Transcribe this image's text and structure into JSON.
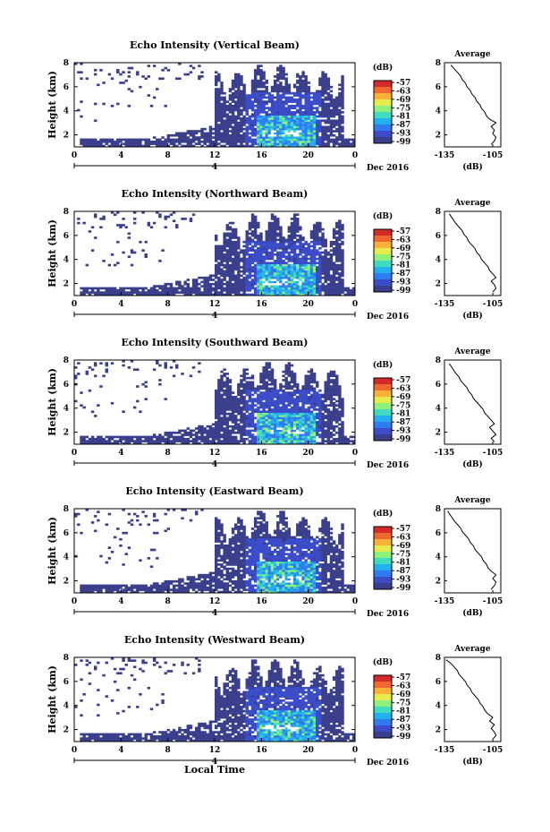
{
  "figure": {
    "xlabel": "Local Time",
    "date_label": "Dec 2016",
    "sub_tick_label": "4",
    "cb_unit": "(dB)",
    "avg_title": "Average",
    "avg_xlabel": "(dB)"
  },
  "colors": {
    "scale": [
      "#3a3f8c",
      "#3b4cc8",
      "#2f7cf0",
      "#22b1ee",
      "#3fdcc0",
      "#8ef27a",
      "#e6ec4a",
      "#f9b13a",
      "#f0672f",
      "#d42a2a"
    ]
  },
  "chart_data": [
    {
      "type": "heatmap",
      "title": "Echo Intensity (Vertical Beam)",
      "ylabel": "Height (km)",
      "xlabel": "",
      "x_ticks": [
        "0",
        "4",
        "8",
        "12",
        "16",
        "20",
        "0"
      ],
      "y_ticks": [
        "2",
        "4",
        "6",
        "8"
      ],
      "xlim": [
        0,
        24
      ],
      "ylim": [
        1,
        8
      ],
      "colorbar": {
        "label": "(dB)",
        "ticks": [
          "-57",
          "-63",
          "-69",
          "-75",
          "-81",
          "-87",
          "-93",
          "-99"
        ]
      },
      "profile": {
        "title": "Average",
        "xlabel": "(dB)",
        "x_ticks": [
          "-135",
          "-105"
        ],
        "y_ticks": [
          "2",
          "4",
          "6",
          "8"
        ],
        "xlim": [
          -135,
          -100
        ],
        "ylim": [
          1,
          8
        ],
        "points": [
          [
            -106,
            1.2
          ],
          [
            -104,
            1.5
          ],
          [
            -103,
            1.8
          ],
          [
            -105,
            2.1
          ],
          [
            -104,
            2.4
          ],
          [
            -106,
            2.7
          ],
          [
            -103,
            3.0
          ],
          [
            -107,
            3.3
          ],
          [
            -109,
            3.6
          ],
          [
            -110,
            3.9
          ],
          [
            -112,
            4.2
          ],
          [
            -113,
            4.5
          ],
          [
            -115,
            4.8
          ],
          [
            -116,
            5.1
          ],
          [
            -118,
            5.4
          ],
          [
            -119,
            5.7
          ],
          [
            -121,
            6.0
          ],
          [
            -122,
            6.3
          ],
          [
            -124,
            6.6
          ],
          [
            -125,
            6.9
          ],
          [
            -127,
            7.2
          ],
          [
            -129,
            7.5
          ],
          [
            -131,
            7.8
          ]
        ]
      }
    },
    {
      "type": "heatmap",
      "title": "Echo Intensity (Northward Beam)",
      "ylabel": "Height (km)",
      "xlabel": "",
      "x_ticks": [
        "0",
        "4",
        "8",
        "12",
        "16",
        "20",
        "0"
      ],
      "y_ticks": [
        "2",
        "4",
        "6",
        "8"
      ],
      "xlim": [
        0,
        24
      ],
      "ylim": [
        1,
        8
      ],
      "colorbar": {
        "label": "(dB)",
        "ticks": [
          "-57",
          "-63",
          "-69",
          "-75",
          "-81",
          "-87",
          "-93",
          "-99"
        ]
      },
      "profile": {
        "title": "Average",
        "xlabel": "(dB)",
        "x_ticks": [
          "-135",
          "-105"
        ],
        "y_ticks": [
          "2",
          "4",
          "6",
          "8"
        ],
        "xlim": [
          -135,
          -100
        ],
        "ylim": [
          1,
          8
        ],
        "points": [
          [
            -105,
            1.3
          ],
          [
            -103,
            1.6
          ],
          [
            -104,
            1.9
          ],
          [
            -106,
            2.2
          ],
          [
            -103,
            2.5
          ],
          [
            -105,
            2.8
          ],
          [
            -107,
            3.1
          ],
          [
            -108,
            3.4
          ],
          [
            -110,
            3.7
          ],
          [
            -112,
            4.0
          ],
          [
            -113,
            4.3
          ],
          [
            -115,
            4.6
          ],
          [
            -116,
            4.9
          ],
          [
            -118,
            5.2
          ],
          [
            -120,
            5.5
          ],
          [
            -121,
            5.8
          ],
          [
            -123,
            6.1
          ],
          [
            -124,
            6.4
          ],
          [
            -126,
            6.7
          ],
          [
            -128,
            7.0
          ],
          [
            -130,
            7.4
          ],
          [
            -132,
            7.8
          ]
        ]
      }
    },
    {
      "type": "heatmap",
      "title": "Echo Intensity (Southward Beam)",
      "ylabel": "Height (km)",
      "xlabel": "",
      "x_ticks": [
        "0",
        "4",
        "8",
        "12",
        "16",
        "20",
        "0"
      ],
      "y_ticks": [
        "2",
        "4",
        "6",
        "8"
      ],
      "xlim": [
        0,
        24
      ],
      "ylim": [
        1,
        8
      ],
      "colorbar": {
        "label": "(dB)",
        "ticks": [
          "-57",
          "-63",
          "-69",
          "-75",
          "-81",
          "-87",
          "-93",
          "-99"
        ]
      },
      "profile": {
        "title": "Average",
        "xlabel": "(dB)",
        "x_ticks": [
          "-135",
          "-105"
        ],
        "y_ticks": [
          "2",
          "4",
          "6",
          "8"
        ],
        "xlim": [
          -135,
          -100
        ],
        "ylim": [
          1,
          8
        ],
        "points": [
          [
            -104,
            1.2
          ],
          [
            -106,
            1.5
          ],
          [
            -103,
            1.8
          ],
          [
            -105,
            2.1
          ],
          [
            -107,
            2.4
          ],
          [
            -104,
            2.7
          ],
          [
            -106,
            3.0
          ],
          [
            -108,
            3.3
          ],
          [
            -110,
            3.6
          ],
          [
            -111,
            3.9
          ],
          [
            -113,
            4.2
          ],
          [
            -115,
            4.5
          ],
          [
            -117,
            4.8
          ],
          [
            -118,
            5.1
          ],
          [
            -120,
            5.4
          ],
          [
            -121,
            5.7
          ],
          [
            -123,
            6.0
          ],
          [
            -125,
            6.3
          ],
          [
            -126,
            6.6
          ],
          [
            -128,
            6.9
          ],
          [
            -130,
            7.3
          ],
          [
            -132,
            7.7
          ]
        ]
      }
    },
    {
      "type": "heatmap",
      "title": "Echo Intensity (Eastward Beam)",
      "ylabel": "Height (km)",
      "xlabel": "",
      "x_ticks": [
        "0",
        "4",
        "8",
        "12",
        "16",
        "20",
        "0"
      ],
      "y_ticks": [
        "2",
        "4",
        "6",
        "8"
      ],
      "xlim": [
        0,
        24
      ],
      "ylim": [
        1,
        8
      ],
      "colorbar": {
        "label": "(dB)",
        "ticks": [
          "-57",
          "-63",
          "-69",
          "-75",
          "-81",
          "-87",
          "-93",
          "-99"
        ]
      },
      "profile": {
        "title": "Average",
        "xlabel": "(dB)",
        "x_ticks": [
          "-135",
          "-105"
        ],
        "y_ticks": [
          "2",
          "4",
          "6",
          "8"
        ],
        "xlim": [
          -135,
          -100
        ],
        "ylim": [
          1,
          8
        ],
        "points": [
          [
            -106,
            1.3
          ],
          [
            -104,
            1.6
          ],
          [
            -103,
            1.9
          ],
          [
            -105,
            2.2
          ],
          [
            -103,
            2.5
          ],
          [
            -106,
            2.8
          ],
          [
            -108,
            3.1
          ],
          [
            -109,
            3.4
          ],
          [
            -111,
            3.7
          ],
          [
            -112,
            4.0
          ],
          [
            -114,
            4.3
          ],
          [
            -116,
            4.6
          ],
          [
            -117,
            4.9
          ],
          [
            -119,
            5.2
          ],
          [
            -120,
            5.5
          ],
          [
            -122,
            5.8
          ],
          [
            -124,
            6.1
          ],
          [
            -125,
            6.4
          ],
          [
            -127,
            6.7
          ],
          [
            -129,
            7.0
          ],
          [
            -131,
            7.4
          ],
          [
            -133,
            7.8
          ]
        ]
      }
    },
    {
      "type": "heatmap",
      "title": "Echo Intensity (Westward Beam)",
      "ylabel": "Height (km)",
      "xlabel": "Local Time",
      "x_ticks": [
        "0",
        "4",
        "8",
        "12",
        "16",
        "20",
        "0"
      ],
      "y_ticks": [
        "2",
        "4",
        "6",
        "8"
      ],
      "xlim": [
        0,
        24
      ],
      "ylim": [
        1,
        8
      ],
      "colorbar": {
        "label": "(dB)",
        "ticks": [
          "-57",
          "-63",
          "-69",
          "-75",
          "-81",
          "-87",
          "-93",
          "-99"
        ]
      },
      "profile": {
        "title": "Average",
        "xlabel": "(dB)",
        "x_ticks": [
          "-135",
          "-105"
        ],
        "y_ticks": [
          "2",
          "4",
          "6",
          "8"
        ],
        "xlim": [
          -135,
          -100
        ],
        "ylim": [
          1,
          8
        ],
        "points": [
          [
            -105,
            1.2
          ],
          [
            -103,
            1.5
          ],
          [
            -104,
            1.8
          ],
          [
            -106,
            2.1
          ],
          [
            -104,
            2.4
          ],
          [
            -107,
            2.7
          ],
          [
            -105,
            3.0
          ],
          [
            -108,
            3.3
          ],
          [
            -110,
            3.6
          ],
          [
            -111,
            3.9
          ],
          [
            -113,
            4.2
          ],
          [
            -114,
            4.5
          ],
          [
            -116,
            4.8
          ],
          [
            -118,
            5.1
          ],
          [
            -119,
            5.4
          ],
          [
            -121,
            5.7
          ],
          [
            -122,
            6.0
          ],
          [
            -124,
            6.3
          ],
          [
            -126,
            6.6
          ],
          [
            -127,
            6.9
          ],
          [
            -129,
            7.2
          ],
          [
            -131,
            7.5
          ],
          [
            -134,
            7.8
          ]
        ]
      }
    }
  ]
}
